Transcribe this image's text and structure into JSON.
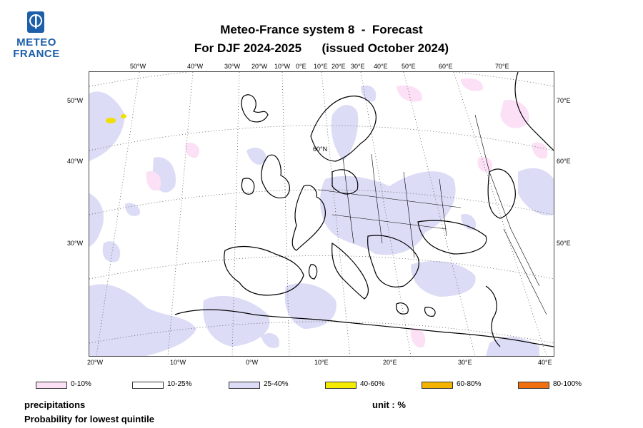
{
  "logo": {
    "line1": "METEO",
    "line2": "FRANCE"
  },
  "title": {
    "line1": "Meteo-France system 8  -  Forecast",
    "line2": "For DJF 2024-2025      (issued October 2024)"
  },
  "map": {
    "top_lon_labels": [
      "50°W",
      "40°W",
      "30°W",
      "20°W",
      "10°W",
      "0°E",
      "10°E",
      "20°E",
      "30°E",
      "40°E",
      "50°E",
      "60°E",
      "70°E"
    ],
    "left_lat_labels": [
      "50°W",
      "40°W",
      "30°W"
    ],
    "right_labels": [
      "70°E",
      "60°E",
      "50°E"
    ],
    "bottom_lon_labels": [
      "20°W",
      "10°W",
      "0°W",
      "10°E",
      "20°E",
      "30°E",
      "40°E"
    ],
    "inner_lat_label": "60°N",
    "colors": {
      "low": "#fbe0f6",
      "mid": "#ffffff",
      "high": "#dcdcf6",
      "yellow": "#f0e000",
      "coast": "#000000",
      "grid": "#555555"
    }
  },
  "legend": [
    {
      "label": "0-10%",
      "color": "#fbe0f6"
    },
    {
      "label": "10-25%",
      "color": "#ffffff"
    },
    {
      "label": "25-40%",
      "color": "#dcdcf6"
    },
    {
      "label": "40-60%",
      "color": "#f5eb00"
    },
    {
      "label": "60-80%",
      "color": "#f2b400"
    },
    {
      "label": "80-100%",
      "color": "#f07010"
    }
  ],
  "footer": {
    "variable": "precipitations",
    "description": "Probability for lowest quintile",
    "unit": "unit : %"
  }
}
